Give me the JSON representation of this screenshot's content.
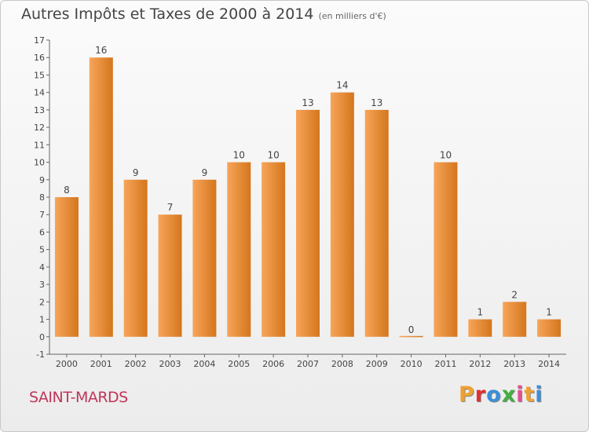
{
  "chart_data": {
    "type": "bar",
    "title": "Autres Impôts et Taxes de 2000 à 2014",
    "subtitle": "(en milliers d'€)",
    "categories": [
      "2000",
      "2001",
      "2002",
      "2003",
      "2004",
      "2005",
      "2006",
      "2007",
      "2008",
      "2009",
      "2010",
      "2011",
      "2012",
      "2013",
      "2014"
    ],
    "values": [
      8,
      16,
      9,
      7,
      9,
      10,
      10,
      13,
      14,
      13,
      0,
      10,
      1,
      2,
      1
    ],
    "data_labels": [
      "8",
      "16",
      "9",
      "7",
      "9",
      "10",
      "10",
      "13",
      "14",
      "13",
      "0",
      "10",
      "1",
      "2",
      "1"
    ],
    "ylim": [
      -1,
      17
    ],
    "yticks": [
      "-1",
      "0",
      "1",
      "2",
      "3",
      "4",
      "5",
      "6",
      "7",
      "8",
      "9",
      "10",
      "11",
      "12",
      "13",
      "14",
      "15",
      "16",
      "17"
    ],
    "grid": false,
    "legend": "none",
    "bar_color_light": "#f7a55a",
    "bar_color_dark": "#d4761c"
  },
  "footer": {
    "commune": "SAINT-MARDS",
    "brand": [
      "P",
      "r",
      "o",
      "x",
      "i",
      "t",
      "i"
    ],
    "brand_colors": [
      "#f0a030",
      "#e03030",
      "#3a8fd8",
      "#40b040",
      "#e05090",
      "#f0a030",
      "#3a8fd8"
    ]
  }
}
